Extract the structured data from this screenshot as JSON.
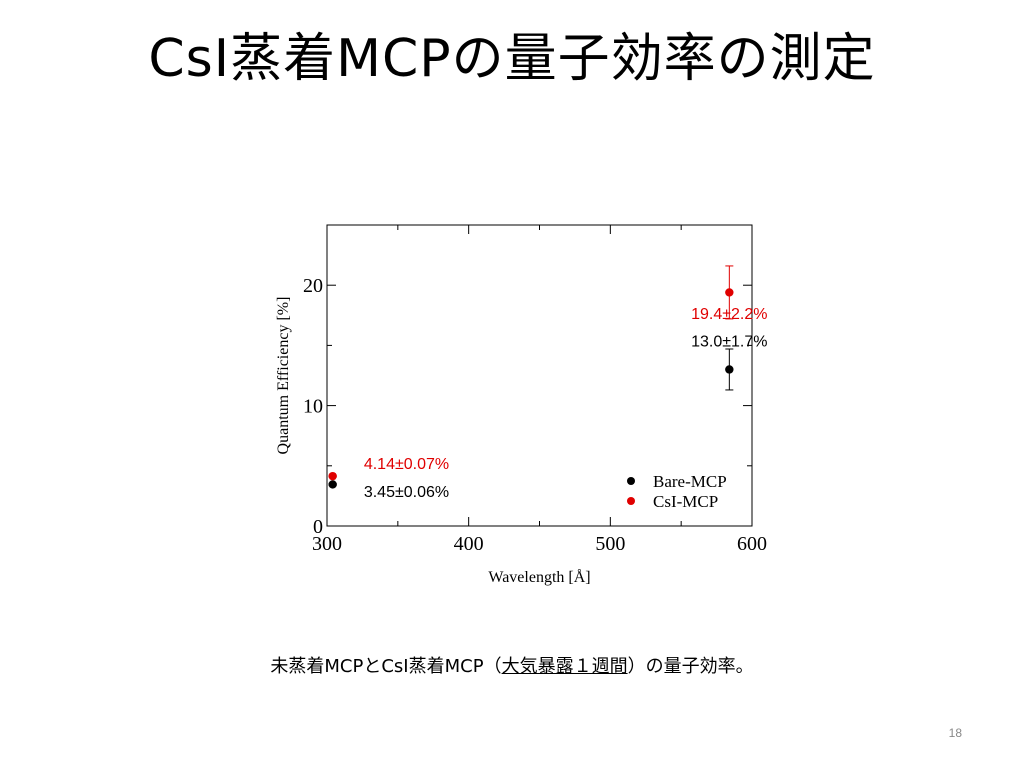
{
  "slide": {
    "title": "CsI蒸着MCPの量子効率の測定",
    "caption": {
      "before": "未蒸着MCPとCsI蒸着MCP（",
      "underlined": "大気暴露１週間",
      "after": "）の量子効率。"
    },
    "page_number": "18"
  },
  "chart_data": {
    "type": "scatter",
    "xlabel": "Wavelength [Å]",
    "ylabel": "Quantum Efficiency [%]",
    "xlim": [
      300,
      600
    ],
    "ylim": [
      0,
      25
    ],
    "xticks": [
      300,
      400,
      500,
      600
    ],
    "yticks": [
      0,
      10,
      20
    ],
    "xminor": [
      350,
      450,
      550
    ],
    "yminor": [
      5,
      15
    ],
    "legend_position": "lower-right",
    "series": [
      {
        "name": "Bare-MCP",
        "color": "#000000",
        "points": [
          {
            "x": 304,
            "y": 3.45,
            "err": 0.06
          },
          {
            "x": 584,
            "y": 13.0,
            "err": 1.7
          }
        ]
      },
      {
        "name": "CsI-MCP",
        "color": "#e00000",
        "points": [
          {
            "x": 304,
            "y": 4.14,
            "err": 0.07
          },
          {
            "x": 584,
            "y": 19.4,
            "err": 2.2
          }
        ]
      }
    ],
    "annotations": [
      {
        "text": "4.14±0.07%",
        "color": "#e00000",
        "x": 326,
        "y": 4.75
      },
      {
        "text": "3.45±0.06%",
        "color": "#000000",
        "x": 326,
        "y": 2.4
      },
      {
        "text": "19.4±2.2%",
        "color": "#e00000",
        "x": 557,
        "y": 17.2
      },
      {
        "text": "13.0±1.7%",
        "color": "#000000",
        "x": 557,
        "y": 14.9
      }
    ]
  }
}
